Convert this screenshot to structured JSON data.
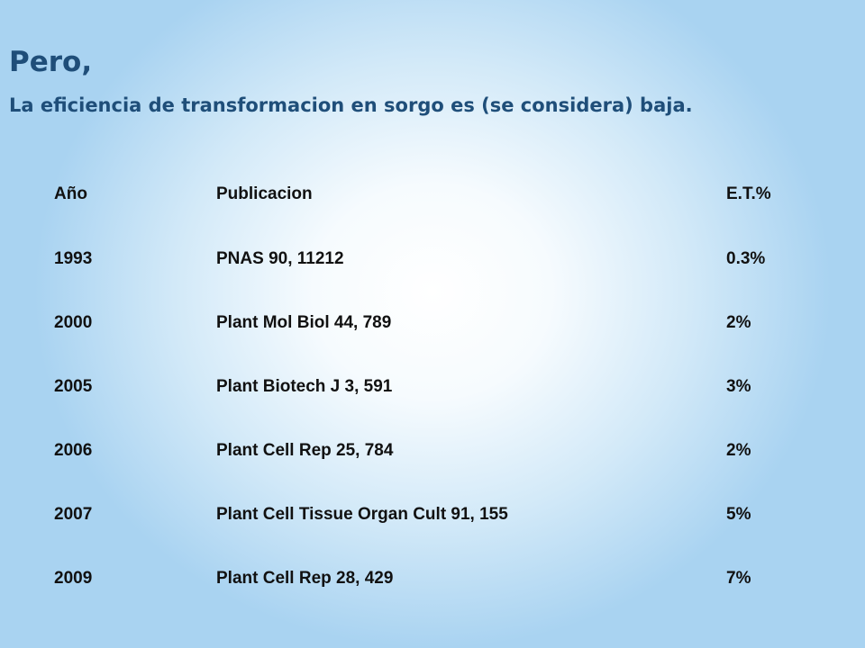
{
  "slide": {
    "title": "Pero,",
    "subtitle": "La eficiencia de transformacion en sorgo es (se considera) baja."
  },
  "table": {
    "headers": {
      "year": "Año",
      "publication": "Publicacion",
      "efficiency": "E.T.%"
    },
    "rows": [
      {
        "year": "1993",
        "publication": "PNAS 90, 11212",
        "efficiency": "0.3%"
      },
      {
        "year": "2000",
        "publication": "Plant Mol Biol 44, 789",
        "efficiency": "2%"
      },
      {
        "year": "2005",
        "publication": "Plant Biotech J 3, 591",
        "efficiency": "3%"
      },
      {
        "year": "2006",
        "publication": "Plant Cell Rep 25, 784",
        "efficiency": "2%"
      },
      {
        "year": "2007",
        "publication": "Plant Cell Tissue Organ Cult 91, 155",
        "efficiency": "5%"
      },
      {
        "year": "2009",
        "publication": "Plant Cell Rep 28, 429",
        "efficiency": "7%"
      }
    ]
  },
  "colors": {
    "title": "#1f4e79",
    "text": "#111111",
    "background_edge": "#a9d3f1",
    "background_center": "#ffffff"
  }
}
